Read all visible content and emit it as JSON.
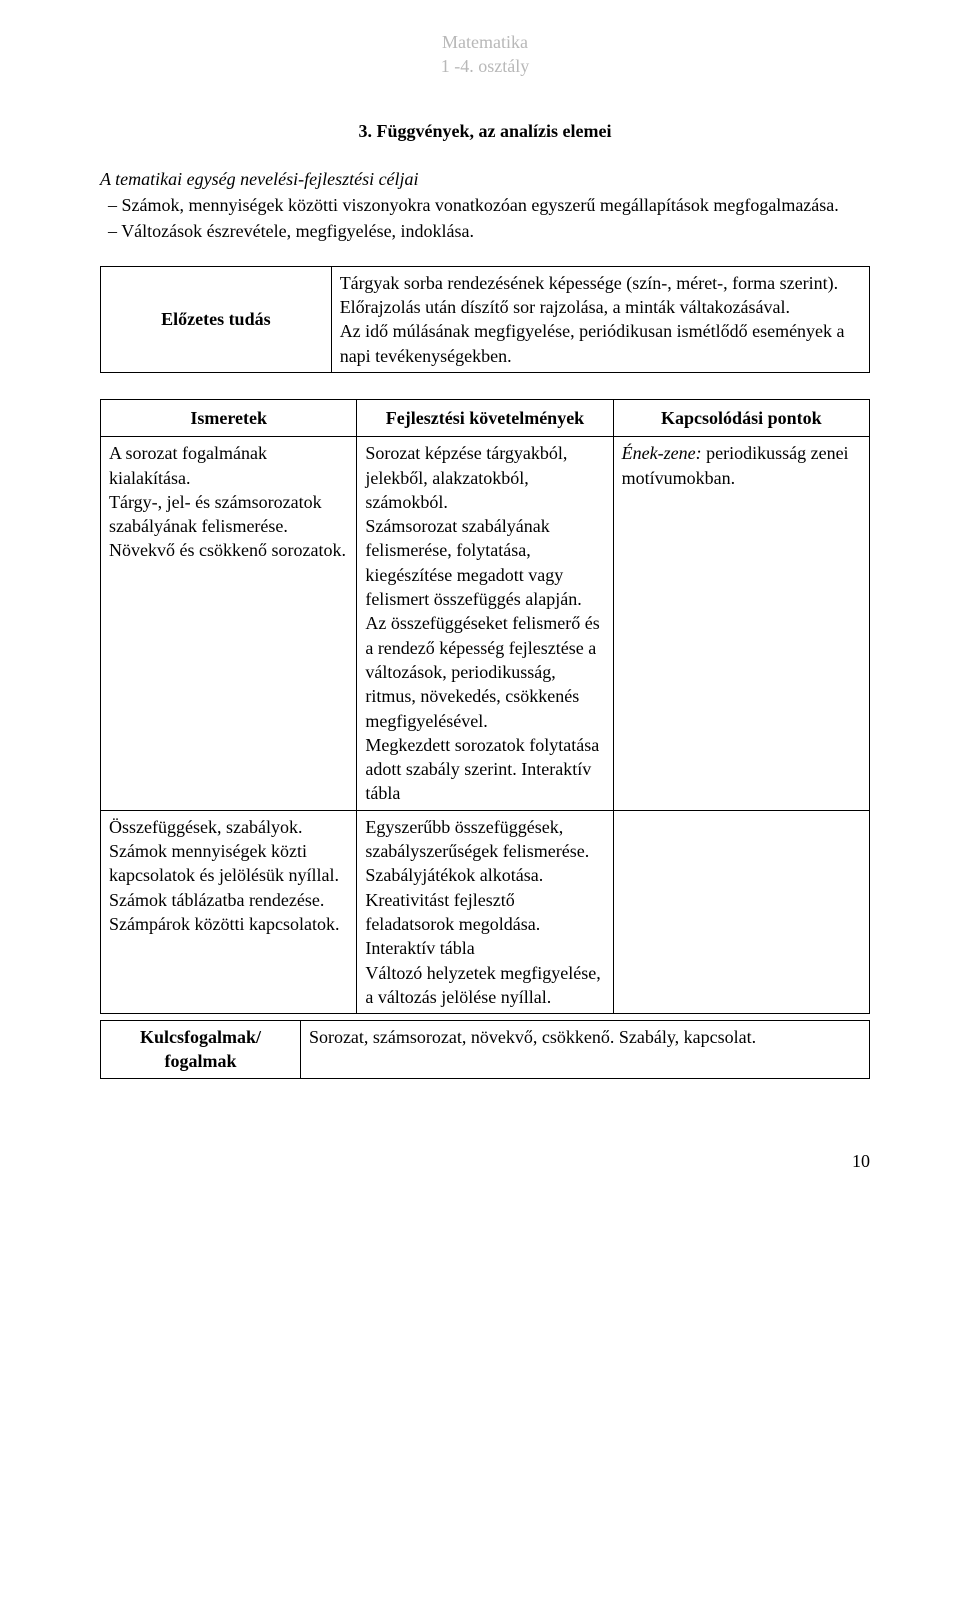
{
  "header": {
    "line1": "Matematika",
    "line2": "1 -4. osztály"
  },
  "section_title": "3. Függvények, az analízis elemei",
  "subheading": "A tematikai egység nevelési-fejlesztési céljai",
  "goals": [
    "Számok, mennyiségek közötti viszonyokra vonatkozóan egyszerű megállapítások megfogalmazása.",
    "Változások észrevétele, megfigyelése, indoklása."
  ],
  "prior": {
    "label": "Előzetes tudás",
    "text": "Tárgyak sorba rendezésének képessége (szín-, méret-, forma szerint).\nElőrajzolás után díszítő sor rajzolása, a minták váltakozásával.\nAz idő múlásának megfigyelése, periódikusan ismétlődő események a napi tevékenységekben."
  },
  "table_headers": {
    "c1": "Ismeretek",
    "c2": "Fejlesztési követelmények",
    "c3": "Kapcsolódási pontok"
  },
  "rows": [
    {
      "c1": "A sorozat fogalmának kialakítása.\nTárgy-, jel- és számsorozatok szabályának felismerése.\nNövekvő és csökkenő sorozatok.",
      "c2": "Sorozat képzése tárgyakból, jelekből, alakzatokból, számokból.\nSzámsorozat szabályának felismerése, folytatása, kiegészítése megadott vagy felismert összefüggés alapján.\nAz összefüggéseket felismerő és a rendező képesség fejlesztése a változások, periodikusság, ritmus, növekedés, csökkenés megfigyelésével.\nMegkezdett sorozatok folytatása adott szabály szerint. Interaktív tábla",
      "c3_italic": "Ének-zene:",
      "c3_rest": " periodikusság zenei motívumokban."
    },
    {
      "c1": "Összefüggések, szabályok.\nSzámok mennyiségek közti kapcsolatok és jelölésük nyíllal.\nSzámok táblázatba rendezése.\nSzámpárok közötti kapcsolatok.",
      "c2": "Egyszerűbb összefüggések, szabályszerűségek felismerése.\nSzabályjátékok alkotása.\nKreativitást fejlesztő feladatsorok megoldása.\nInteraktív tábla\nVáltozó helyzetek megfigyelése, a változás jelölése nyíllal.",
      "c3_italic": "",
      "c3_rest": ""
    }
  ],
  "key": {
    "label": "Kulcsfogalmak/ fogalmak",
    "text": "Sorozat, számsorozat, növekvő, csökkenő. Szabály, kapcsolat."
  },
  "page_number": "10"
}
